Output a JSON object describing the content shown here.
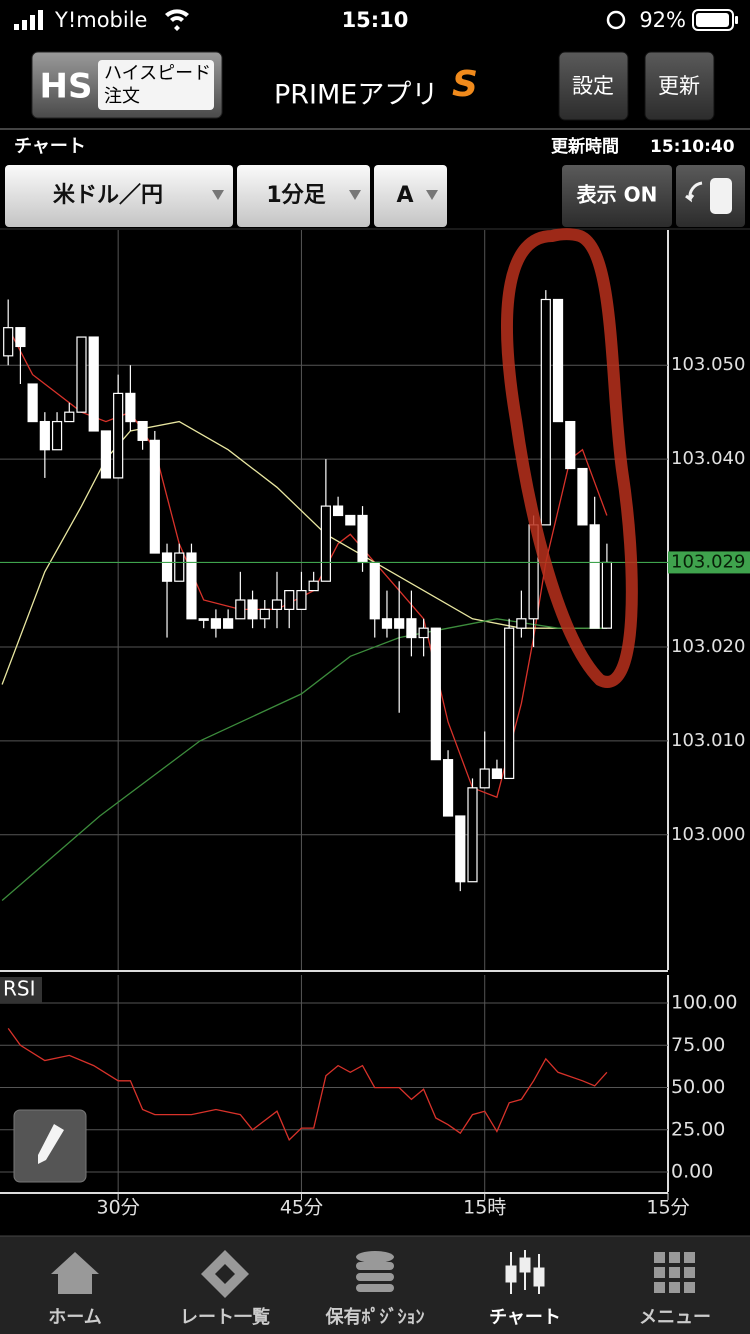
{
  "status_bar": {
    "carrier": "Y!mobile",
    "time": "15:10",
    "battery": "92%"
  },
  "header": {
    "logo": "HS",
    "badge_line1": "ハイスピード",
    "badge_line2": "注文",
    "app_name": "PRIMEアプリ",
    "app_mark": "S",
    "settings_button": "設定",
    "refresh_button": "更新"
  },
  "subheader": {
    "title": "チャート",
    "update_label": "更新時間",
    "update_time": "15:10:40"
  },
  "toolbar": {
    "pair": "米ドル／円",
    "interval": "1分足",
    "mode": "A",
    "display_toggle": "表示 ON"
  },
  "chart_data": [
    {
      "type": "candlestick",
      "x": [
        21,
        22,
        23,
        24,
        25,
        26,
        27,
        28,
        29,
        30,
        31,
        32,
        33,
        34,
        35,
        36,
        37,
        38,
        39,
        40,
        41,
        42,
        43,
        44,
        45,
        46,
        47,
        48,
        49,
        50,
        51,
        52,
        53,
        54,
        55,
        56,
        57,
        58,
        59,
        60,
        61,
        62,
        63,
        64,
        65,
        66,
        67,
        68,
        69,
        70
      ],
      "open": [
        103.051,
        103.054,
        103.048,
        103.044,
        103.041,
        103.044,
        103.045,
        103.053,
        103.043,
        103.038,
        103.047,
        103.044,
        103.042,
        103.03,
        103.027,
        103.03,
        103.023,
        103.023,
        103.023,
        103.023,
        103.025,
        103.023,
        103.024,
        103.024,
        103.024,
        103.026,
        103.027,
        103.035,
        103.034,
        103.034,
        103.029,
        103.023,
        103.023,
        103.023,
        103.021,
        103.022,
        103.008,
        103.002,
        102.995,
        103.005,
        103.007,
        103.006,
        103.022,
        103.023,
        103.033,
        103.057,
        103.044,
        103.039,
        103.033,
        103.022
      ],
      "high": [
        103.057,
        103.054,
        103.048,
        103.045,
        103.045,
        103.046,
        103.053,
        103.053,
        103.043,
        103.049,
        103.05,
        103.044,
        103.043,
        103.031,
        103.031,
        103.031,
        103.023,
        103.024,
        103.024,
        103.028,
        103.026,
        103.025,
        103.028,
        103.026,
        103.028,
        103.028,
        103.04,
        103.036,
        103.034,
        103.035,
        103.029,
        103.026,
        103.027,
        103.026,
        103.023,
        103.022,
        103.009,
        103.002,
        103.006,
        103.011,
        103.008,
        103.023,
        103.026,
        103.034,
        103.058,
        103.057,
        103.044,
        103.039,
        103.036,
        103.031
      ],
      "low": [
        103.05,
        103.048,
        103.044,
        103.038,
        103.041,
        103.044,
        103.045,
        103.043,
        103.038,
        103.038,
        103.043,
        103.041,
        103.03,
        103.021,
        103.027,
        103.023,
        103.022,
        103.021,
        103.022,
        103.023,
        103.022,
        103.022,
        103.022,
        103.022,
        103.024,
        103.026,
        103.027,
        103.034,
        103.033,
        103.028,
        103.021,
        103.021,
        103.013,
        103.019,
        103.019,
        103.008,
        103.002,
        102.994,
        102.995,
        103.005,
        103.006,
        103.006,
        103.021,
        103.02,
        103.033,
        103.044,
        103.039,
        103.033,
        103.022,
        103.022
      ],
      "close": [
        103.054,
        103.052,
        103.044,
        103.041,
        103.044,
        103.045,
        103.053,
        103.043,
        103.038,
        103.047,
        103.044,
        103.042,
        103.03,
        103.027,
        103.03,
        103.023,
        103.023,
        103.022,
        103.022,
        103.025,
        103.023,
        103.024,
        103.025,
        103.026,
        103.026,
        103.027,
        103.035,
        103.034,
        103.033,
        103.029,
        103.023,
        103.022,
        103.022,
        103.021,
        103.022,
        103.008,
        103.002,
        102.995,
        103.005,
        103.007,
        103.006,
        103.022,
        103.023,
        103.033,
        103.057,
        103.044,
        103.039,
        103.033,
        103.022,
        103.029
      ],
      "color": "#ffffff",
      "series": [
        {
          "color": "#d8322a",
          "x": [
            21,
            23,
            25,
            27,
            29,
            31,
            33,
            35,
            37,
            40,
            43,
            46,
            48,
            49,
            51,
            53,
            55,
            57,
            59,
            61,
            63,
            64,
            65,
            67,
            68,
            70
          ],
          "values": [
            103.054,
            103.049,
            103.047,
            103.045,
            103.044,
            103.045,
            103.041,
            103.031,
            103.025,
            103.024,
            103.024,
            103.026,
            103.031,
            103.032,
            103.029,
            103.026,
            103.023,
            103.012,
            103.005,
            103.004,
            103.014,
            103.021,
            103.029,
            103.04,
            103.041,
            103.034
          ]
        },
        {
          "color": "#e8e6a0",
          "x": [
            20.5,
            24,
            27,
            29,
            31,
            35,
            39,
            43,
            47,
            51,
            55,
            59,
            63,
            66,
            70
          ],
          "values": [
            103.016,
            103.028,
            103.035,
            103.04,
            103.043,
            103.044,
            103.041,
            103.037,
            103.032,
            103.029,
            103.026,
            103.023,
            103.022,
            103.022,
            103.022
          ]
        },
        {
          "color": "#3c8c3c",
          "x": [
            20.5,
            28.5,
            36.7,
            45,
            49,
            53,
            57,
            61,
            66,
            70
          ],
          "values": [
            102.993,
            103.002,
            103.01,
            103.015,
            103.019,
            103.021,
            103.022,
            103.023,
            103.022,
            103.022
          ]
        }
      ],
      "last_price": 103.029,
      "last_price_color": "#3fa34d",
      "xlim": [
        20.33,
        75
      ],
      "xticks": [
        {
          "value": 30,
          "label": "30分"
        },
        {
          "value": 45,
          "label": "45分"
        },
        {
          "value": 60,
          "label": "15時"
        },
        {
          "value": 75,
          "label": "15分"
        }
      ],
      "ylim": [
        102.9856,
        103.0644
      ],
      "yticks": [
        {
          "value": 103.05,
          "label": "103.050"
        },
        {
          "value": 103.04,
          "label": "103.040"
        },
        {
          "value": 103.02,
          "label": "103.020"
        },
        {
          "value": 103.01,
          "label": "103.010"
        },
        {
          "value": 103.0,
          "label": "103.000"
        }
      ],
      "grid": true
    },
    {
      "type": "line",
      "title": "RSI",
      "series": [
        {
          "color": "#d8322a",
          "x": [
            21,
            22,
            24,
            26,
            28,
            30,
            31,
            32,
            33,
            36,
            38,
            40,
            41,
            43,
            44,
            45,
            46,
            47,
            48,
            49,
            50,
            51,
            53,
            54,
            55,
            56,
            57,
            58,
            59,
            60,
            61,
            62,
            63,
            64,
            65,
            66,
            68,
            69,
            70
          ],
          "values": [
            85,
            75,
            66,
            69,
            63,
            54,
            54,
            37,
            34,
            34,
            37,
            34,
            25,
            36,
            19,
            26,
            26,
            57,
            63,
            59,
            63,
            50,
            50,
            43,
            49,
            32,
            28,
            23,
            34,
            36,
            24,
            41,
            43,
            54,
            67,
            59,
            54,
            51,
            59
          ]
        }
      ],
      "xlim": [
        20.33,
        75
      ],
      "ylim": [
        -11.8,
        116.6
      ],
      "yticks": [
        {
          "value": 100,
          "label": "100.00"
        },
        {
          "value": 75,
          "label": "75.00"
        },
        {
          "value": 50,
          "label": "50.00"
        },
        {
          "value": 25,
          "label": "25.00"
        },
        {
          "value": 0,
          "label": "0.00"
        }
      ],
      "grid": true
    }
  ],
  "nav": [
    "ホーム",
    "レート一覧",
    "保有ﾎﾟｼﾞｼｮﾝ",
    "チャート",
    "メニュー"
  ]
}
